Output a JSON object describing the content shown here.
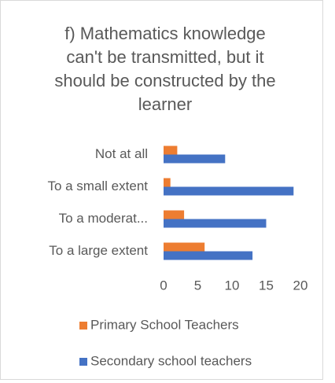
{
  "chart_data": {
    "type": "hbar",
    "title": "f) Mathematics knowledge can't be transmitted, but it should be constructed by the learner",
    "categories": [
      "Not at all",
      "To a small extent",
      "To a moderat...",
      "To a large extent"
    ],
    "series": [
      {
        "name": "Primary School Teachers",
        "color": "#ed7d31",
        "values": [
          2,
          1,
          3,
          6
        ]
      },
      {
        "name": "Secondary school teachers",
        "color": "#4472c4",
        "values": [
          9,
          19,
          15,
          13
        ]
      }
    ],
    "xlim": [
      0,
      20
    ],
    "xticks": [
      0,
      5,
      10,
      15,
      20
    ],
    "legend": "bottom"
  }
}
